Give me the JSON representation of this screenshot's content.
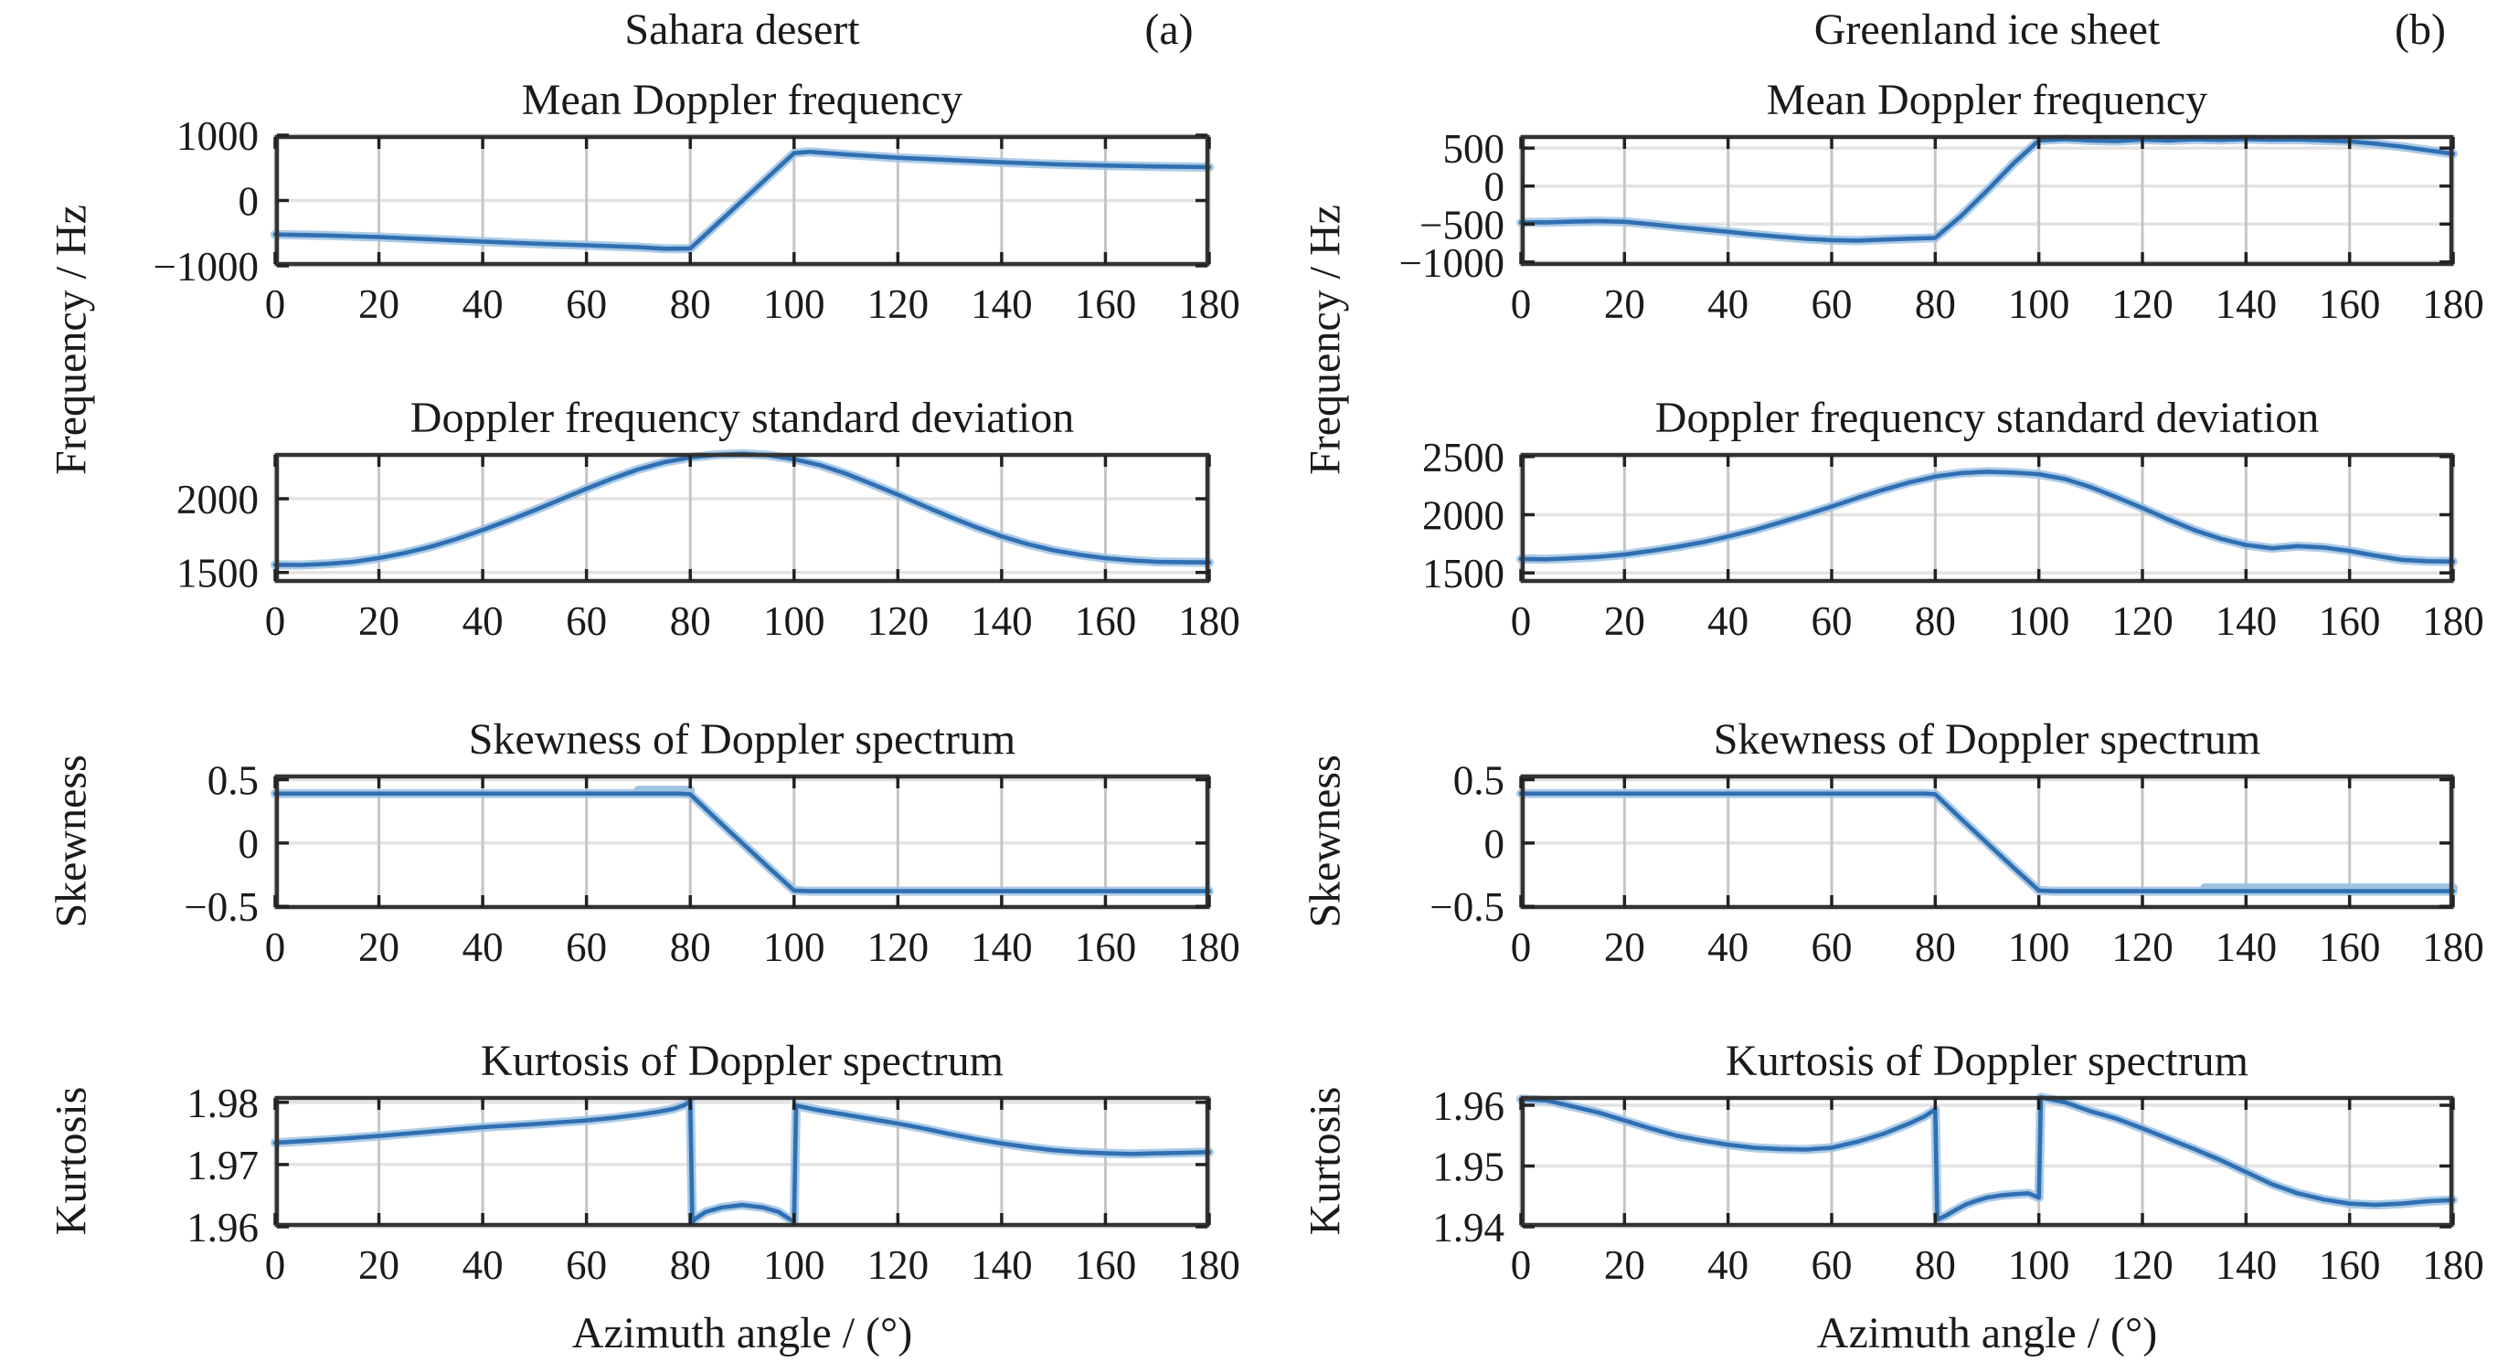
{
  "header": {
    "left": {
      "title": "Sahara desert",
      "tag": "(a)"
    },
    "right": {
      "title": "Greenland ice sheet",
      "tag": "(b)"
    }
  },
  "axis_labels": {
    "frequency": "Frequency / Hz",
    "skewness": "Skewness",
    "kurtosis": "Kurtosis",
    "x": "Azimuth angle / (°)"
  },
  "colors": {
    "line": "#2f6fb3",
    "halo": "#9dc2e2",
    "frame": "#333333",
    "grid_v": "#c6c6c6",
    "grid_h": "#e3e3e3",
    "tick": "#222222",
    "text": "#1a1a1a",
    "background": "#ffffff"
  },
  "chart_data": [
    {
      "id": "sahara-mean-doppler",
      "panel": "Sahara desert",
      "type": "line",
      "grid": true,
      "title": "Mean Doppler frequency",
      "ylabel": "Frequency / Hz",
      "xlim": [
        0,
        180
      ],
      "ylim": [
        -1000,
        1000
      ],
      "xticks": [
        0,
        20,
        40,
        60,
        80,
        100,
        120,
        140,
        160,
        180
      ],
      "xtick_labels": [
        "0",
        "20",
        "40",
        "60",
        "80",
        "100",
        "120",
        "140",
        "160",
        "180"
      ],
      "yticks": [
        1000,
        0,
        -1000
      ],
      "ytick_labels": [
        "1000",
        "0",
        "−1000"
      ],
      "points": [
        [
          0,
          -520
        ],
        [
          10,
          -535
        ],
        [
          20,
          -560
        ],
        [
          30,
          -595
        ],
        [
          40,
          -630
        ],
        [
          50,
          -660
        ],
        [
          60,
          -685
        ],
        [
          70,
          -715
        ],
        [
          75,
          -738
        ],
        [
          80,
          -735
        ],
        [
          85,
          -370
        ],
        [
          90,
          -5
        ],
        [
          95,
          360
        ],
        [
          100,
          725
        ],
        [
          103,
          745
        ],
        [
          110,
          705
        ],
        [
          120,
          655
        ],
        [
          130,
          620
        ],
        [
          140,
          585
        ],
        [
          150,
          555
        ],
        [
          160,
          535
        ],
        [
          170,
          520
        ],
        [
          180,
          510
        ]
      ]
    },
    {
      "id": "sahara-doppler-std",
      "panel": "Sahara desert",
      "type": "line",
      "grid": true,
      "title": "Doppler frequency standard deviation",
      "ylabel": "Frequency / Hz",
      "xlim": [
        0,
        180
      ],
      "ylim": [
        1430,
        2310
      ],
      "xticks": [
        0,
        20,
        40,
        60,
        80,
        100,
        120,
        140,
        160,
        180
      ],
      "xtick_labels": [
        "0",
        "20",
        "40",
        "60",
        "80",
        "100",
        "120",
        "140",
        "160",
        "180"
      ],
      "yticks": [
        2000,
        1500
      ],
      "ytick_labels": [
        "2000",
        "1500"
      ],
      "points": [
        [
          0,
          1552
        ],
        [
          5,
          1550
        ],
        [
          10,
          1558
        ],
        [
          15,
          1572
        ],
        [
          20,
          1598
        ],
        [
          25,
          1632
        ],
        [
          30,
          1675
        ],
        [
          35,
          1728
        ],
        [
          40,
          1788
        ],
        [
          45,
          1853
        ],
        [
          50,
          1922
        ],
        [
          55,
          1995
        ],
        [
          60,
          2068
        ],
        [
          65,
          2138
        ],
        [
          70,
          2200
        ],
        [
          75,
          2248
        ],
        [
          80,
          2280
        ],
        [
          85,
          2298
        ],
        [
          90,
          2305
        ],
        [
          95,
          2295
        ],
        [
          100,
          2268
        ],
        [
          105,
          2228
        ],
        [
          110,
          2170
        ],
        [
          115,
          2100
        ],
        [
          120,
          2028
        ],
        [
          125,
          1952
        ],
        [
          130,
          1878
        ],
        [
          135,
          1808
        ],
        [
          140,
          1745
        ],
        [
          145,
          1692
        ],
        [
          150,
          1650
        ],
        [
          155,
          1620
        ],
        [
          160,
          1597
        ],
        [
          165,
          1582
        ],
        [
          170,
          1572
        ],
        [
          175,
          1570
        ],
        [
          180,
          1568
        ]
      ]
    },
    {
      "id": "sahara-skewness",
      "panel": "Sahara desert",
      "type": "line",
      "grid": true,
      "title": "Skewness of Doppler spectrum",
      "ylabel": "Skewness",
      "xlim": [
        0,
        180
      ],
      "ylim": [
        -0.52,
        0.54
      ],
      "xticks": [
        0,
        20,
        40,
        60,
        80,
        100,
        120,
        140,
        160,
        180
      ],
      "xtick_labels": [
        "0",
        "20",
        "40",
        "60",
        "80",
        "100",
        "120",
        "140",
        "160",
        "180"
      ],
      "yticks": [
        0.5,
        0,
        -0.5
      ],
      "ytick_labels": [
        "0.5",
        "0",
        "−0.5"
      ],
      "points": [
        [
          0,
          0.39
        ],
        [
          78,
          0.39
        ],
        [
          80,
          0.385
        ],
        [
          85,
          0.19
        ],
        [
          90,
          0.0
        ],
        [
          95,
          -0.19
        ],
        [
          100,
          -0.375
        ],
        [
          103,
          -0.38
        ],
        [
          180,
          -0.38
        ]
      ],
      "light_segments": [
        [
          [
            70,
            0.415
          ],
          [
            80,
            0.415
          ]
        ]
      ]
    },
    {
      "id": "sahara-kurtosis",
      "panel": "Sahara desert",
      "type": "line",
      "grid": true,
      "title": "Kurtosis of Doppler spectrum",
      "ylabel": "Kurtosis",
      "xlabel": "Azimuth angle / (°)",
      "xlim": [
        0,
        180
      ],
      "ylim": [
        1.96,
        1.981
      ],
      "xticks": [
        0,
        20,
        40,
        60,
        80,
        100,
        120,
        140,
        160,
        180
      ],
      "xtick_labels": [
        "0",
        "20",
        "40",
        "60",
        "80",
        "100",
        "120",
        "140",
        "160",
        "180"
      ],
      "yticks": [
        1.98,
        1.97,
        1.96
      ],
      "ytick_labels": [
        "1.98",
        "1.97",
        "1.96"
      ],
      "points": [
        [
          0,
          1.9735
        ],
        [
          10,
          1.974
        ],
        [
          20,
          1.9746
        ],
        [
          30,
          1.9753
        ],
        [
          40,
          1.976
        ],
        [
          50,
          1.9765
        ],
        [
          60,
          1.9771
        ],
        [
          65,
          1.9775
        ],
        [
          70,
          1.978
        ],
        [
          74,
          1.9785
        ],
        [
          77,
          1.979
        ],
        [
          79,
          1.9796
        ],
        [
          80,
          1.9802
        ],
        [
          80.4,
          1.9608
        ],
        [
          81,
          1.9613
        ],
        [
          83,
          1.9624
        ],
        [
          86,
          1.9631
        ],
        [
          90,
          1.9635
        ],
        [
          94,
          1.9631
        ],
        [
          97,
          1.9624
        ],
        [
          99,
          1.9613
        ],
        [
          100,
          1.9608
        ],
        [
          100.4,
          1.9795
        ],
        [
          102,
          1.9792
        ],
        [
          105,
          1.9787
        ],
        [
          110,
          1.978
        ],
        [
          115,
          1.9773
        ],
        [
          120,
          1.9766
        ],
        [
          125,
          1.9758
        ],
        [
          130,
          1.9749
        ],
        [
          135,
          1.9741
        ],
        [
          140,
          1.9734
        ],
        [
          145,
          1.9728
        ],
        [
          150,
          1.9723
        ],
        [
          155,
          1.972
        ],
        [
          160,
          1.9718
        ],
        [
          165,
          1.9717
        ],
        [
          170,
          1.9718
        ],
        [
          175,
          1.9719
        ],
        [
          180,
          1.972
        ]
      ]
    },
    {
      "id": "greenland-mean-doppler",
      "panel": "Greenland ice sheet",
      "type": "line",
      "grid": true,
      "title": "Mean Doppler frequency",
      "ylabel": "Frequency / Hz",
      "xlim": [
        0,
        180
      ],
      "ylim": [
        -1050,
        670
      ],
      "xticks": [
        0,
        20,
        40,
        60,
        80,
        100,
        120,
        140,
        160,
        180
      ],
      "xtick_labels": [
        "0",
        "20",
        "40",
        "60",
        "80",
        "100",
        "120",
        "140",
        "160",
        "180"
      ],
      "yticks": [
        500,
        0,
        -500,
        -1000
      ],
      "ytick_labels": [
        "500",
        "0",
        "−500",
        "−1000"
      ],
      "points": [
        [
          0,
          -480
        ],
        [
          5,
          -478
        ],
        [
          10,
          -468
        ],
        [
          15,
          -462
        ],
        [
          20,
          -470
        ],
        [
          25,
          -502
        ],
        [
          30,
          -538
        ],
        [
          35,
          -570
        ],
        [
          40,
          -602
        ],
        [
          45,
          -638
        ],
        [
          50,
          -668
        ],
        [
          55,
          -695
        ],
        [
          60,
          -712
        ],
        [
          65,
          -718
        ],
        [
          70,
          -705
        ],
        [
          75,
          -693
        ],
        [
          80,
          -682
        ],
        [
          85,
          -395
        ],
        [
          90,
          -60
        ],
        [
          95,
          290
        ],
        [
          100,
          600
        ],
        [
          105,
          618
        ],
        [
          110,
          600
        ],
        [
          115,
          592
        ],
        [
          120,
          612
        ],
        [
          125,
          600
        ],
        [
          130,
          615
        ],
        [
          135,
          608
        ],
        [
          140,
          618
        ],
        [
          145,
          610
        ],
        [
          150,
          613
        ],
        [
          155,
          600
        ],
        [
          160,
          588
        ],
        [
          165,
          558
        ],
        [
          170,
          520
        ],
        [
          175,
          472
        ],
        [
          180,
          425
        ]
      ]
    },
    {
      "id": "greenland-doppler-std",
      "panel": "Greenland ice sheet",
      "type": "line",
      "grid": true,
      "title": "Doppler frequency standard deviation",
      "ylabel": "Frequency / Hz",
      "xlim": [
        0,
        180
      ],
      "ylim": [
        1415,
        2530
      ],
      "xticks": [
        0,
        20,
        40,
        60,
        80,
        100,
        120,
        140,
        160,
        180
      ],
      "xtick_labels": [
        "0",
        "20",
        "40",
        "60",
        "80",
        "100",
        "120",
        "140",
        "160",
        "180"
      ],
      "yticks": [
        2500,
        2000,
        1500
      ],
      "ytick_labels": [
        "2500",
        "2000",
        "1500"
      ],
      "points": [
        [
          0,
          1620
        ],
        [
          5,
          1617
        ],
        [
          10,
          1626
        ],
        [
          15,
          1638
        ],
        [
          20,
          1658
        ],
        [
          25,
          1688
        ],
        [
          30,
          1723
        ],
        [
          35,
          1763
        ],
        [
          40,
          1813
        ],
        [
          45,
          1868
        ],
        [
          50,
          1933
        ],
        [
          55,
          2000
        ],
        [
          60,
          2070
        ],
        [
          65,
          2145
        ],
        [
          70,
          2215
        ],
        [
          75,
          2278
        ],
        [
          80,
          2328
        ],
        [
          85,
          2358
        ],
        [
          90,
          2370
        ],
        [
          95,
          2363
        ],
        [
          100,
          2348
        ],
        [
          105,
          2308
        ],
        [
          110,
          2238
        ],
        [
          115,
          2150
        ],
        [
          120,
          2058
        ],
        [
          125,
          1960
        ],
        [
          130,
          1868
        ],
        [
          135,
          1795
        ],
        [
          140,
          1740
        ],
        [
          145,
          1712
        ],
        [
          150,
          1730
        ],
        [
          155,
          1718
        ],
        [
          160,
          1688
        ],
        [
          165,
          1648
        ],
        [
          170,
          1613
        ],
        [
          175,
          1600
        ],
        [
          180,
          1597
        ]
      ]
    },
    {
      "id": "greenland-skewness",
      "panel": "Greenland ice sheet",
      "type": "line",
      "grid": true,
      "title": "Skewness of Doppler spectrum",
      "ylabel": "Skewness",
      "xlim": [
        0,
        180
      ],
      "ylim": [
        -0.52,
        0.54
      ],
      "xticks": [
        0,
        20,
        40,
        60,
        80,
        100,
        120,
        140,
        160,
        180
      ],
      "xtick_labels": [
        "0",
        "20",
        "40",
        "60",
        "80",
        "100",
        "120",
        "140",
        "160",
        "180"
      ],
      "yticks": [
        0.5,
        0,
        -0.5
      ],
      "ytick_labels": [
        "0.5",
        "0",
        "−0.5"
      ],
      "points": [
        [
          0,
          0.39
        ],
        [
          78,
          0.39
        ],
        [
          80,
          0.385
        ],
        [
          85,
          0.19
        ],
        [
          90,
          0.0
        ],
        [
          95,
          -0.19
        ],
        [
          100,
          -0.375
        ],
        [
          103,
          -0.38
        ],
        [
          180,
          -0.38
        ]
      ],
      "light_segments": [
        [
          [
            132,
            -0.355
          ],
          [
            180,
            -0.355
          ]
        ]
      ]
    },
    {
      "id": "greenland-kurtosis",
      "panel": "Greenland ice sheet",
      "type": "line",
      "grid": true,
      "title": "Kurtosis of Doppler spectrum",
      "ylabel": "Kurtosis",
      "xlabel": "Azimuth angle / (°)",
      "xlim": [
        0,
        180
      ],
      "ylim": [
        1.94,
        1.9615
      ],
      "xticks": [
        0,
        20,
        40,
        60,
        80,
        100,
        120,
        140,
        160,
        180
      ],
      "xtick_labels": [
        "0",
        "20",
        "40",
        "60",
        "80",
        "100",
        "120",
        "140",
        "160",
        "180"
      ],
      "yticks": [
        1.96,
        1.95,
        1.94
      ],
      "ytick_labels": [
        "1.96",
        "1.95",
        "1.94"
      ],
      "points": [
        [
          0,
          1.961
        ],
        [
          5,
          1.9608
        ],
        [
          10,
          1.9598
        ],
        [
          15,
          1.9588
        ],
        [
          20,
          1.9575
        ],
        [
          25,
          1.9562
        ],
        [
          30,
          1.955
        ],
        [
          35,
          1.9542
        ],
        [
          40,
          1.9535
        ],
        [
          45,
          1.953
        ],
        [
          50,
          1.9528
        ],
        [
          55,
          1.9527
        ],
        [
          60,
          1.953
        ],
        [
          65,
          1.954
        ],
        [
          70,
          1.9553
        ],
        [
          75,
          1.957
        ],
        [
          78,
          1.9582
        ],
        [
          80,
          1.9593
        ],
        [
          80.4,
          1.9412
        ],
        [
          82,
          1.9418
        ],
        [
          84,
          1.9428
        ],
        [
          86,
          1.9437
        ],
        [
          88,
          1.9443
        ],
        [
          90,
          1.9448
        ],
        [
          93,
          1.9452
        ],
        [
          96,
          1.9454
        ],
        [
          98,
          1.9455
        ],
        [
          100,
          1.9448
        ],
        [
          100.4,
          1.9613
        ],
        [
          102,
          1.961
        ],
        [
          105,
          1.9605
        ],
        [
          110,
          1.959
        ],
        [
          115,
          1.9578
        ],
        [
          120,
          1.9562
        ],
        [
          125,
          1.9545
        ],
        [
          130,
          1.9528
        ],
        [
          135,
          1.951
        ],
        [
          140,
          1.949
        ],
        [
          145,
          1.947
        ],
        [
          150,
          1.9455
        ],
        [
          155,
          1.9445
        ],
        [
          160,
          1.9438
        ],
        [
          165,
          1.9436
        ],
        [
          170,
          1.9438
        ],
        [
          175,
          1.9442
        ],
        [
          180,
          1.9444
        ]
      ]
    }
  ]
}
